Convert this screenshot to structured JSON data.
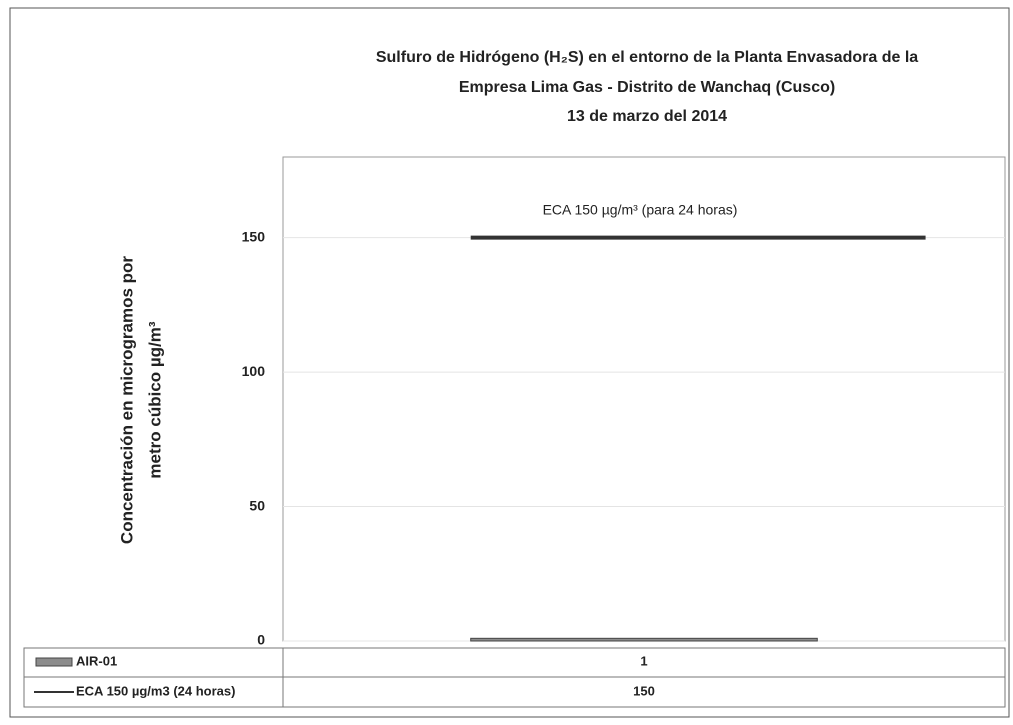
{
  "chart_data": {
    "type": "bar",
    "title": [
      "Sulfuro de Hidrógeno (H₂S) en el entorno de la Planta Envasadora de la",
      "Empresa Lima Gas - Distrito de Wanchaq (Cusco)",
      "13 de marzo del 2014"
    ],
    "y_label": [
      "Concentración en microgramos por",
      "metro cúbico µg/m³"
    ],
    "annotation": "ECA 150 µg/m³ (para 24 horas)",
    "categories": [
      null
    ],
    "series": [
      {
        "name": "AIR-01",
        "type": "bar",
        "color": "#8c8c8c",
        "values": [
          1
        ]
      },
      {
        "name": "ECA 150 µg/m3 (24 horas)",
        "type": "line",
        "color": "#333333",
        "values": [
          150
        ]
      }
    ],
    "ylim": [
      0,
      180
    ],
    "yticks": [
      0,
      50,
      100,
      150
    ],
    "grid": true
  }
}
